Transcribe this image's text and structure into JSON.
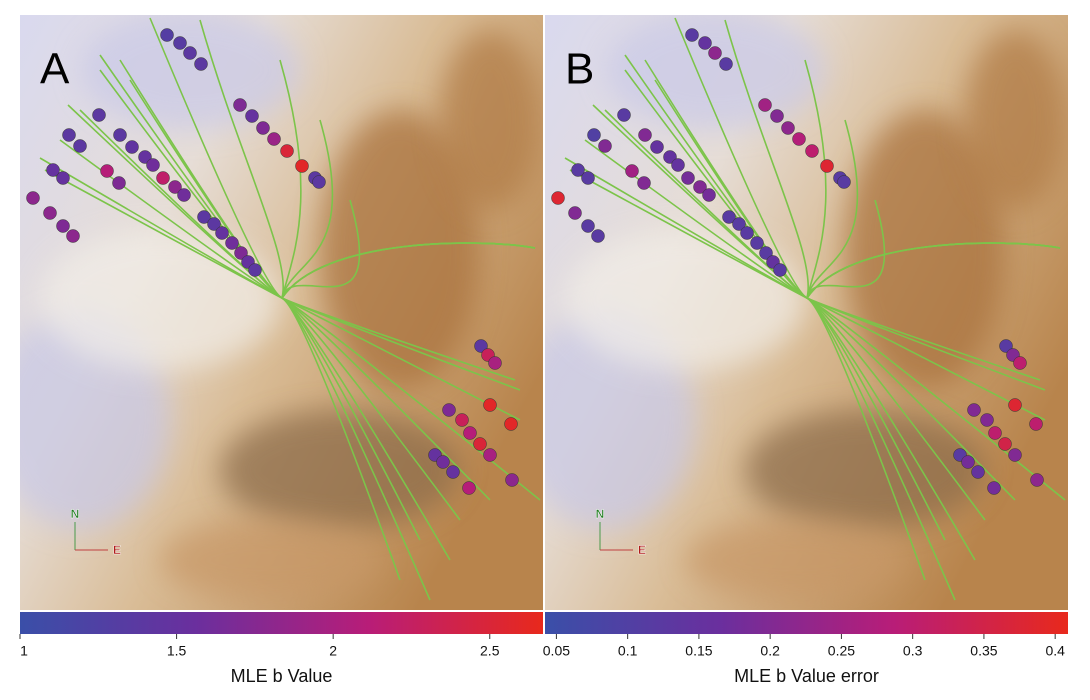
{
  "colormap": [
    "#3a4fa8",
    "#6a2f9e",
    "#b81d78",
    "#e8291c"
  ],
  "panels": [
    {
      "label": "A",
      "compass": {
        "n": "N",
        "e": "E"
      },
      "colorbar": {
        "label": "MLE b Value",
        "xlim": [
          1,
          2.67
        ],
        "xticks": [
          1,
          1.5,
          2,
          2.5
        ]
      },
      "values": [
        1.3,
        1.35,
        1.4,
        1.4,
        1.7,
        1.5,
        1.7,
        1.9,
        2.5,
        2.6,
        1.4,
        1.4,
        1.4,
        1.4,
        1.4,
        1.4,
        1.45,
        1.5,
        1.6,
        2.2,
        1.8,
        1.6,
        1.5,
        1.5,
        2.1,
        1.7,
        1.8,
        1.8,
        1.7,
        1.8,
        1.4,
        1.4,
        1.5,
        1.6,
        1.7,
        1.5,
        1.4,
        1.4,
        2.3,
        2.0,
        1.7,
        2.3,
        2.6,
        2.6,
        2.1,
        2.5,
        2.0,
        1.5,
        1.6,
        1.5,
        2.1,
        1.8
      ]
    },
    {
      "label": "B",
      "compass": {
        "n": "N",
        "e": "E"
      },
      "colorbar": {
        "label": "MLE b Value error",
        "xlim": [
          0.042,
          0.409
        ],
        "xticks": [
          0.05,
          0.1,
          0.15,
          0.2,
          0.25,
          0.3,
          0.35,
          0.4
        ]
      },
      "values": [
        0.12,
        0.15,
        0.22,
        0.12,
        0.25,
        0.2,
        0.22,
        0.28,
        0.3,
        0.38,
        0.12,
        0.12,
        0.1,
        0.2,
        0.12,
        0.2,
        0.15,
        0.15,
        0.15,
        0.18,
        0.2,
        0.18,
        0.12,
        0.12,
        0.25,
        0.2,
        0.38,
        0.2,
        0.12,
        0.12,
        0.12,
        0.12,
        0.12,
        0.12,
        0.12,
        0.15,
        0.12,
        0.12,
        0.2,
        0.3,
        0.2,
        0.2,
        0.38,
        0.3,
        0.3,
        0.35,
        0.2,
        0.12,
        0.18,
        0.15,
        0.18,
        0.22
      ]
    }
  ]
}
